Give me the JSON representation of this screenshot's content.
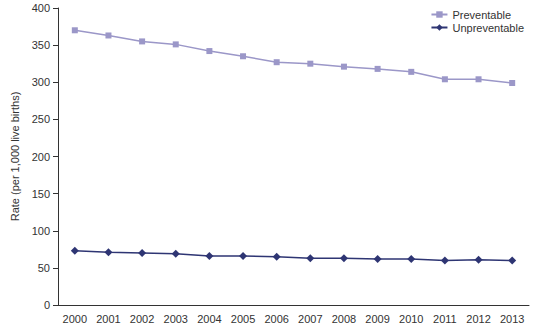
{
  "chart_data": {
    "type": "line",
    "y_label": "Rate (per 1,000 live births)",
    "categories": [
      "2000",
      "2001",
      "2002",
      "2003",
      "2004",
      "2005",
      "2006",
      "2007",
      "2008",
      "2009",
      "2010",
      "2011",
      "2012",
      "2013"
    ],
    "series": [
      {
        "name": "Preventable",
        "color": "#9b97c8",
        "marker": "square",
        "line_style": "solid",
        "values": [
          370,
          363,
          355,
          351,
          342,
          335,
          327,
          325,
          321,
          318,
          314,
          304,
          304,
          299
        ]
      },
      {
        "name": "Unpreventable",
        "color": "#2e3573",
        "marker": "diamond",
        "line_style": "solid",
        "values": [
          73,
          71,
          70,
          69,
          66,
          66,
          65,
          63,
          63,
          62,
          62,
          60,
          61,
          60
        ]
      }
    ],
    "ylim": [
      0,
      400
    ],
    "yticks": [
      0,
      50,
      100,
      150,
      200,
      250,
      300,
      350,
      400
    ],
    "grid": false,
    "legend": "upper right"
  }
}
